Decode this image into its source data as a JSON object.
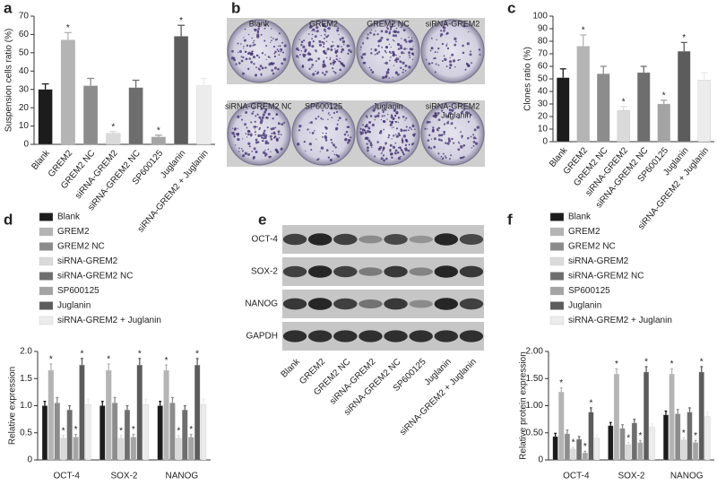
{
  "chart_data": [
    {
      "type": "bar",
      "letter": "a",
      "ylabel": "Suspension cells ratio (%)",
      "categories": [
        "Blank",
        "GREM2",
        "GREM2 NC",
        "siRNA-GREM2",
        "siRNA-GREM2 NC",
        "SP600125",
        "Juglanin",
        "siRNA-GREM2 + Juglanin"
      ],
      "values": [
        30,
        57,
        32,
        6,
        31,
        4,
        59,
        32
      ],
      "errors": [
        3,
        4,
        4,
        1,
        4,
        1,
        6,
        4
      ],
      "markers": [
        null,
        "*",
        null,
        "*",
        null,
        "*",
        "*",
        null
      ],
      "colors": [
        "#1c1c1c",
        "#b4b4b4",
        "#8c8c8c",
        "#dadada",
        "#6e6e6e",
        "#a4a4a4",
        "#5c5c5c",
        "#ececec"
      ],
      "ylim": [
        0,
        70
      ],
      "yticks": [
        0,
        10,
        20,
        30,
        40,
        50,
        60,
        70
      ]
    },
    {
      "type": "bar",
      "letter": "c",
      "ylabel": "Clones ratio (%)",
      "categories": [
        "Blank",
        "GREM2",
        "GREM2 NC",
        "siRNA-GREM2",
        "siRNA-GREM2 NC",
        "SP600125",
        "Juglanin",
        "siRNA-GREM2 + Juglanin"
      ],
      "values": [
        51,
        76,
        54,
        25,
        55,
        30,
        72,
        49
      ],
      "errors": [
        7,
        9,
        6,
        3,
        5,
        3,
        7,
        6
      ],
      "markers": [
        null,
        "*",
        null,
        "*",
        null,
        "*",
        "*",
        null
      ],
      "colors": [
        "#1c1c1c",
        "#b4b4b4",
        "#8c8c8c",
        "#dadada",
        "#6e6e6e",
        "#a4a4a4",
        "#5c5c5c",
        "#ececec"
      ],
      "ylim": [
        0,
        100
      ],
      "yticks": [
        0,
        10,
        20,
        30,
        40,
        50,
        60,
        70,
        80,
        90,
        100
      ]
    },
    {
      "type": "grouped_bar",
      "letter": "d",
      "ylabel": "Relative expression",
      "categories": [
        "OCT-4",
        "SOX-2",
        "NANOG"
      ],
      "series": [
        {
          "name": "Blank",
          "color": "#1c1c1c",
          "values": [
            1.0,
            1.0,
            1.0
          ],
          "errors": [
            0.08,
            0.08,
            0.08
          ],
          "markers": [
            null,
            null,
            null
          ]
        },
        {
          "name": "GREM2",
          "color": "#b4b4b4",
          "values": [
            1.65,
            1.65,
            1.65
          ],
          "errors": [
            0.12,
            0.12,
            0.1
          ],
          "markers": [
            "*",
            "*",
            "*"
          ]
        },
        {
          "name": "GREM2 NC",
          "color": "#8c8c8c",
          "values": [
            1.05,
            1.05,
            1.05
          ],
          "errors": [
            0.1,
            0.1,
            0.1
          ],
          "markers": [
            null,
            null,
            null
          ]
        },
        {
          "name": "siRNA-GREM2",
          "color": "#dadada",
          "values": [
            0.4,
            0.4,
            0.4
          ],
          "errors": [
            0.05,
            0.05,
            0.05
          ],
          "markers": [
            "*",
            "*",
            "*"
          ]
        },
        {
          "name": "siRNA-GREM2 NC",
          "color": "#6e6e6e",
          "values": [
            0.92,
            0.92,
            0.92
          ],
          "errors": [
            0.08,
            0.08,
            0.08
          ],
          "markers": [
            null,
            null,
            null
          ]
        },
        {
          "name": "SP600125",
          "color": "#a4a4a4",
          "values": [
            0.42,
            0.42,
            0.42
          ],
          "errors": [
            0.05,
            0.05,
            0.05
          ],
          "markers": [
            "*",
            "*",
            "*"
          ]
        },
        {
          "name": "Juglanin",
          "color": "#5c5c5c",
          "values": [
            1.75,
            1.75,
            1.75
          ],
          "errors": [
            0.12,
            0.12,
            0.12
          ],
          "markers": [
            "*",
            "*",
            "*"
          ]
        },
        {
          "name": "siRNA-GREM2 + Juglanin",
          "color": "#ececec",
          "values": [
            1.02,
            1.02,
            1.02
          ],
          "errors": [
            0.1,
            0.1,
            0.1
          ],
          "markers": [
            null,
            null,
            null
          ]
        }
      ],
      "ylim": [
        0,
        2
      ],
      "yticks": [
        0,
        0.5,
        {
          "value": 1,
          "label": "1.0"
        },
        1.5,
        {
          "value": 2,
          "label": "2.0"
        }
      ]
    },
    {
      "type": "grouped_bar",
      "letter": "f",
      "ylabel": "Relative protein expression",
      "categories": [
        "OCT-4",
        "SOX-2",
        "NANOG"
      ],
      "series": [
        {
          "name": "Blank",
          "color": "#1c1c1c",
          "values": [
            0.43,
            0.63,
            0.83
          ],
          "errors": [
            0.06,
            0.06,
            0.07
          ],
          "markers": [
            null,
            null,
            null
          ]
        },
        {
          "name": "GREM2",
          "color": "#b4b4b4",
          "values": [
            1.25,
            1.58,
            1.58
          ],
          "errors": [
            0.08,
            0.1,
            0.1
          ],
          "markers": [
            "*",
            "*",
            "*"
          ]
        },
        {
          "name": "GREM2 NC",
          "color": "#8c8c8c",
          "values": [
            0.48,
            0.58,
            0.85
          ],
          "errors": [
            0.07,
            0.07,
            0.08
          ],
          "markers": [
            null,
            null,
            null
          ]
        },
        {
          "name": "siRNA-GREM2",
          "color": "#dadada",
          "values": [
            0.2,
            0.28,
            0.37
          ],
          "errors": [
            0.03,
            0.04,
            0.04
          ],
          "markers": [
            "*",
            "*",
            "*"
          ]
        },
        {
          "name": "siRNA-GREM2 NC",
          "color": "#6e6e6e",
          "values": [
            0.38,
            0.68,
            0.88
          ],
          "errors": [
            0.05,
            0.07,
            0.08
          ],
          "markers": [
            null,
            null,
            null
          ]
        },
        {
          "name": "SP600125",
          "color": "#a4a4a4",
          "values": [
            0.13,
            0.32,
            0.32
          ],
          "errors": [
            0.03,
            0.04,
            0.04
          ],
          "markers": [
            "*",
            "*",
            "*"
          ]
        },
        {
          "name": "Juglanin",
          "color": "#5c5c5c",
          "values": [
            0.88,
            1.62,
            1.62
          ],
          "errors": [
            0.08,
            0.1,
            0.1
          ],
          "markers": [
            "*",
            "*",
            "*"
          ]
        },
        {
          "name": "siRNA-GREM2 + Juglanin",
          "color": "#ececec",
          "values": [
            0.4,
            0.6,
            0.8
          ],
          "errors": [
            0.06,
            0.07,
            0.08
          ],
          "markers": [
            null,
            null,
            null
          ]
        }
      ],
      "ylim": [
        0,
        2
      ],
      "yticks": [
        0,
        {
          "value": 0.5,
          "label": "0.50"
        },
        {
          "value": 1,
          "label": "1.00"
        },
        {
          "value": 1.5,
          "label": "1.50"
        },
        {
          "value": 2,
          "label": "2.00"
        }
      ]
    }
  ],
  "colony_image": {
    "letter": "b",
    "labels": [
      [
        "Blank"
      ],
      [
        "GREM2"
      ],
      [
        "GREM2 NC"
      ],
      [
        "siRNA-GREM2"
      ],
      [
        "siRNA-GREM2 NC"
      ],
      [
        "SP600125"
      ],
      [
        "Juglanin"
      ],
      [
        "siRNA-GREM2",
        "+ Juglanin"
      ]
    ]
  },
  "blot_image": {
    "letter": "e",
    "rows": [
      "OCT-4",
      "SOX-2",
      "NANOG",
      "GAPDH"
    ],
    "lanes": [
      "Blank",
      "GREM2",
      "GREM2 NC",
      "siRNA-GREM2",
      "siRNA-GREM2 NC",
      "SP600125",
      "Juglanin",
      "siRNA-GREM2 + Juglanin"
    ]
  }
}
